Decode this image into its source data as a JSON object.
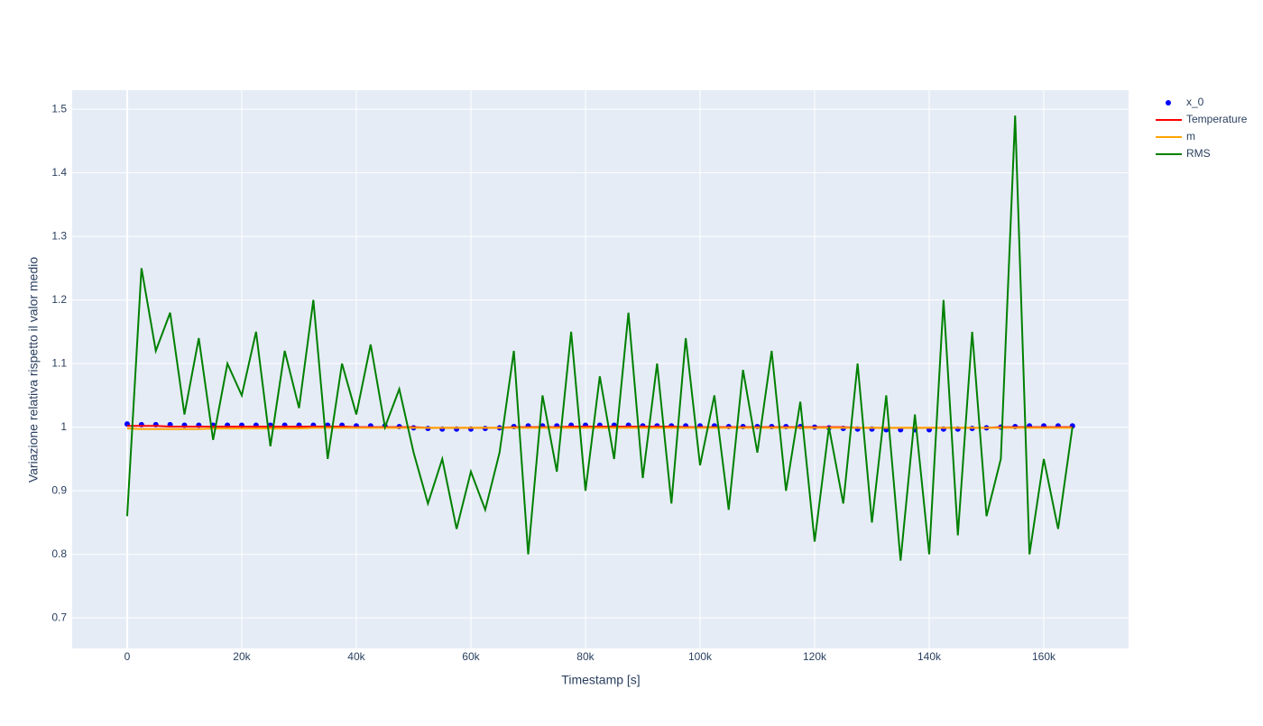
{
  "chart_data": {
    "type": "line",
    "xlabel": "Timestamp [s]",
    "ylabel": "Variazione relativa rispetto il valor medio",
    "x": [
      0,
      2500,
      5000,
      7500,
      10000,
      12500,
      15000,
      17500,
      20000,
      22500,
      25000,
      27500,
      30000,
      32500,
      35000,
      37500,
      40000,
      42500,
      45000,
      47500,
      50000,
      52500,
      55000,
      57500,
      60000,
      62500,
      65000,
      67500,
      70000,
      72500,
      75000,
      77500,
      80000,
      82500,
      85000,
      87500,
      90000,
      92500,
      95000,
      97500,
      100000,
      102500,
      105000,
      107500,
      110000,
      112500,
      115000,
      117500,
      120000,
      122500,
      125000,
      127500,
      130000,
      132500,
      135000,
      137500,
      140000,
      142500,
      145000,
      147500,
      150000,
      152500,
      155000,
      157500,
      160000,
      162500,
      165000
    ],
    "series": [
      {
        "name": "x_0",
        "color": "#0000ff",
        "mode": "markers",
        "values": [
          1.005,
          1.004,
          1.004,
          1.004,
          1.003,
          1.003,
          1.003,
          1.003,
          1.003,
          1.003,
          1.003,
          1.003,
          1.003,
          1.003,
          1.003,
          1.003,
          1.002,
          1.002,
          1.002,
          1.001,
          0.999,
          0.998,
          0.997,
          0.997,
          0.997,
          0.998,
          0.999,
          1.001,
          1.002,
          1.002,
          1.002,
          1.003,
          1.003,
          1.003,
          1.003,
          1.003,
          1.002,
          1.002,
          1.002,
          1.002,
          1.002,
          1.002,
          1.001,
          1.001,
          1.001,
          1.001,
          1.001,
          1.001,
          1.0,
          0.999,
          0.998,
          0.997,
          0.997,
          0.996,
          0.996,
          0.996,
          0.996,
          0.997,
          0.997,
          0.998,
          0.999,
          1.0,
          1.001,
          1.002,
          1.002,
          1.002,
          1.002
        ]
      },
      {
        "name": "Temperature",
        "color": "#ff0000",
        "mode": "lines",
        "values": [
          1.002,
          1.002,
          1.002,
          1.001,
          1.001,
          1.001,
          1.001,
          1.001,
          1.001,
          1.001,
          1.001,
          1.001,
          1.001,
          1.001,
          1.001,
          1.001,
          1.0,
          1.0,
          1.0,
          1.0,
          1.0,
          0.999,
          0.999,
          0.999,
          0.999,
          0.999,
          0.999,
          1.0,
          1.0,
          1.0,
          1.0,
          1.001,
          1.001,
          1.001,
          1.001,
          1.001,
          1.001,
          1.001,
          1.001,
          1.0,
          1.0,
          1.0,
          1.0,
          1.0,
          1.0,
          1.0,
          1.0,
          1.0,
          1.0,
          1.0,
          1.0,
          0.999,
          0.999,
          0.999,
          0.999,
          0.999,
          0.999,
          0.999,
          0.999,
          0.999,
          0.999,
          1.0,
          1.0,
          1.0,
          1.0,
          1.0,
          1.0
        ]
      },
      {
        "name": "m",
        "color": "#ffa500",
        "mode": "lines",
        "values": [
          0.998,
          0.997,
          0.997,
          0.997,
          0.997,
          0.997,
          0.998,
          0.998,
          0.998,
          0.998,
          0.998,
          0.998,
          0.998,
          0.999,
          0.999,
          0.999,
          0.999,
          0.999,
          0.999,
          0.999,
          0.999,
          0.999,
          0.999,
          0.999,
          0.999,
          0.999,
          0.999,
          0.999,
          0.999,
          0.999,
          0.999,
          0.999,
          0.999,
          0.999,
          0.999,
          0.999,
          0.999,
          0.999,
          0.999,
          0.999,
          0.999,
          0.999,
          0.999,
          0.999,
          0.999,
          0.999,
          0.999,
          0.999,
          0.999,
          0.999,
          0.999,
          0.999,
          0.999,
          0.999,
          0.999,
          0.999,
          0.999,
          0.999,
          0.999,
          0.999,
          0.999,
          0.999,
          0.999,
          0.999,
          0.999,
          0.999,
          0.999
        ]
      },
      {
        "name": "RMS",
        "color": "#008000",
        "mode": "lines",
        "values": [
          0.86,
          1.25,
          1.12,
          1.18,
          1.02,
          1.14,
          0.98,
          1.1,
          1.05,
          1.15,
          0.97,
          1.12,
          1.03,
          1.2,
          0.95,
          1.1,
          1.02,
          1.13,
          1.0,
          1.06,
          0.96,
          0.88,
          0.95,
          0.84,
          0.93,
          0.87,
          0.96,
          1.12,
          0.8,
          1.05,
          0.93,
          1.15,
          0.9,
          1.08,
          0.95,
          1.18,
          0.92,
          1.1,
          0.88,
          1.14,
          0.94,
          1.05,
          0.87,
          1.09,
          0.96,
          1.12,
          0.9,
          1.04,
          0.82,
          1.0,
          0.88,
          1.1,
          0.85,
          1.05,
          0.79,
          1.02,
          0.8,
          1.2,
          0.83,
          1.15,
          0.86,
          0.95,
          1.49,
          0.8,
          0.95,
          0.84,
          1.0
        ]
      }
    ],
    "xlim": [
      -9600,
      174800
    ],
    "xticks": [
      0,
      {
        "value": 20000,
        "label": "20k"
      },
      {
        "value": 40000,
        "label": "40k"
      },
      {
        "value": 60000,
        "label": "60k"
      },
      {
        "value": 80000,
        "label": "80k"
      },
      {
        "value": 100000,
        "label": "100k"
      },
      {
        "value": 120000,
        "label": "120k"
      },
      {
        "value": 140000,
        "label": "140k"
      },
      {
        "value": 160000,
        "label": "160k"
      }
    ],
    "ylim": [
      0.652,
      1.53
    ],
    "yticks": [
      0.7,
      0.8,
      0.9,
      1,
      1.1,
      1.2,
      1.3,
      1.4,
      1.5
    ],
    "grid": true,
    "legend": "outside-right"
  }
}
